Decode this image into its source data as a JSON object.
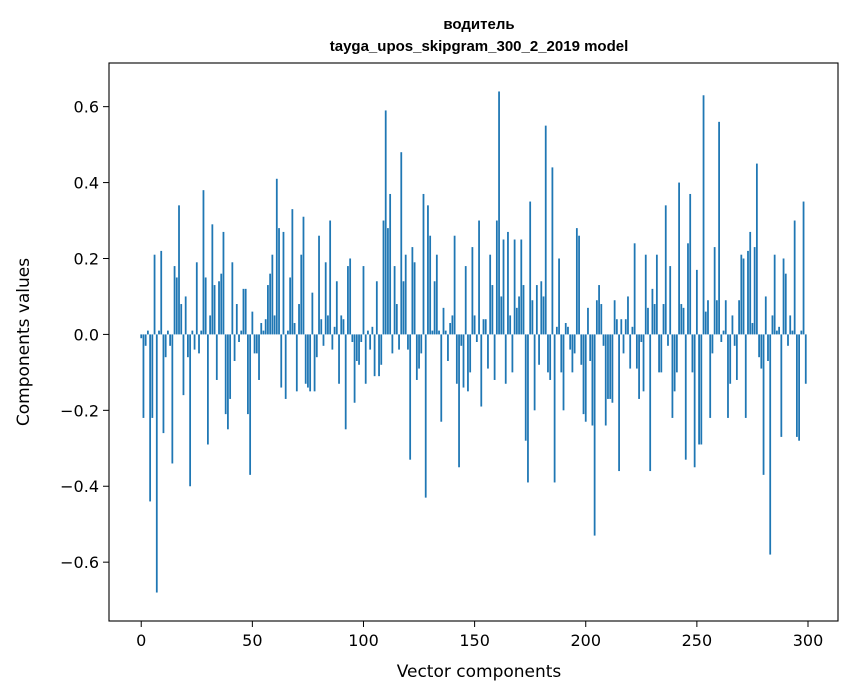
{
  "chart_data": {
    "type": "bar",
    "title": "водитель",
    "subtitle": "tayga_upos_skipgram_300_2_2019 model",
    "xlabel": "Vector components",
    "ylabel": "Components values",
    "xlim": [
      -14.5,
      313.5
    ],
    "ylim": [
      -0.755,
      0.715
    ],
    "xticks": [
      0,
      50,
      100,
      150,
      200,
      250,
      300
    ],
    "xtick_labels": [
      "0",
      "50",
      "100",
      "150",
      "200",
      "250",
      "300"
    ],
    "yticks": [
      -0.6,
      -0.4,
      -0.2,
      0.0,
      0.2,
      0.4,
      0.6
    ],
    "ytick_labels": [
      "−0.6",
      "−0.4",
      "−0.2",
      "0.0",
      "0.2",
      "0.4",
      "0.6"
    ],
    "color": "#1f77b4",
    "x": [
      0,
      1,
      2,
      3,
      4,
      5,
      6,
      7,
      8,
      9,
      10,
      11,
      12,
      13,
      14,
      15,
      16,
      17,
      18,
      19,
      20,
      21,
      22,
      23,
      24,
      25,
      26,
      27,
      28,
      29,
      30,
      31,
      32,
      33,
      34,
      35,
      36,
      37,
      38,
      39,
      40,
      41,
      42,
      43,
      44,
      45,
      46,
      47,
      48,
      49,
      50,
      51,
      52,
      53,
      54,
      55,
      56,
      57,
      58,
      59,
      60,
      61,
      62,
      63,
      64,
      65,
      66,
      67,
      68,
      69,
      70,
      71,
      72,
      73,
      74,
      75,
      76,
      77,
      78,
      79,
      80,
      81,
      82,
      83,
      84,
      85,
      86,
      87,
      88,
      89,
      90,
      91,
      92,
      93,
      94,
      95,
      96,
      97,
      98,
      99,
      100,
      101,
      102,
      103,
      104,
      105,
      106,
      107,
      108,
      109,
      110,
      111,
      112,
      113,
      114,
      115,
      116,
      117,
      118,
      119,
      120,
      121,
      122,
      123,
      124,
      125,
      126,
      127,
      128,
      129,
      130,
      131,
      132,
      133,
      134,
      135,
      136,
      137,
      138,
      139,
      140,
      141,
      142,
      143,
      144,
      145,
      146,
      147,
      148,
      149,
      150,
      151,
      152,
      153,
      154,
      155,
      156,
      157,
      158,
      159,
      160,
      161,
      162,
      163,
      164,
      165,
      166,
      167,
      168,
      169,
      170,
      171,
      172,
      173,
      174,
      175,
      176,
      177,
      178,
      179,
      180,
      181,
      182,
      183,
      184,
      185,
      186,
      187,
      188,
      189,
      190,
      191,
      192,
      193,
      194,
      195,
      196,
      197,
      198,
      199,
      200,
      201,
      202,
      203,
      204,
      205,
      206,
      207,
      208,
      209,
      210,
      211,
      212,
      213,
      214,
      215,
      216,
      217,
      218,
      219,
      220,
      221,
      222,
      223,
      224,
      225,
      226,
      227,
      228,
      229,
      230,
      231,
      232,
      233,
      234,
      235,
      236,
      237,
      238,
      239,
      240,
      241,
      242,
      243,
      244,
      245,
      246,
      247,
      248,
      249,
      250,
      251,
      252,
      253,
      254,
      255,
      256,
      257,
      258,
      259,
      260,
      261,
      262,
      263,
      264,
      265,
      266,
      267,
      268,
      269,
      270,
      271,
      272,
      273,
      274,
      275,
      276,
      277,
      278,
      279,
      280,
      281,
      282,
      283,
      284,
      285,
      286,
      287,
      288,
      289,
      290,
      291,
      292,
      293,
      294,
      295,
      296,
      297,
      298,
      299
    ],
    "values": [
      -0.01,
      -0.22,
      -0.03,
      0.01,
      -0.44,
      -0.22,
      0.21,
      -0.68,
      0.01,
      0.22,
      -0.26,
      -0.06,
      0.01,
      -0.03,
      -0.34,
      0.18,
      0.15,
      0.34,
      0.08,
      -0.16,
      0.1,
      -0.06,
      -0.4,
      0.01,
      -0.04,
      0.19,
      -0.05,
      0.01,
      0.38,
      0.15,
      -0.29,
      0.05,
      0.29,
      0.13,
      -0.12,
      0.14,
      0.16,
      0.27,
      -0.21,
      -0.25,
      -0.17,
      0.19,
      -0.07,
      0.08,
      -0.02,
      0.01,
      0.12,
      0.12,
      -0.21,
      -0.37,
      0.06,
      -0.05,
      -0.05,
      -0.12,
      0.03,
      0.01,
      0.04,
      0.13,
      0.16,
      0.21,
      0.05,
      0.41,
      0.28,
      -0.14,
      0.27,
      -0.17,
      0.01,
      0.15,
      0.33,
      0.03,
      -0.15,
      0.08,
      0.21,
      0.31,
      -0.13,
      -0.14,
      -0.15,
      0.11,
      -0.15,
      -0.06,
      0.26,
      0.04,
      -0.03,
      0.19,
      0.05,
      0.3,
      -0.04,
      0.02,
      0.14,
      -0.13,
      0.05,
      0.04,
      -0.25,
      0.18,
      0.2,
      -0.02,
      -0.18,
      -0.07,
      -0.08,
      -0.02,
      0.18,
      -0.13,
      0.01,
      -0.04,
      0.02,
      -0.11,
      0.14,
      -0.11,
      -0.08,
      0.3,
      0.59,
      0.28,
      0.37,
      -0.05,
      0.18,
      0.08,
      -0.04,
      0.48,
      0.14,
      0.21,
      -0.04,
      -0.33,
      0.23,
      0.19,
      -0.12,
      -0.09,
      -0.05,
      0.37,
      -0.43,
      0.34,
      0.26,
      0.01,
      0.14,
      0.21,
      0.01,
      -0.23,
      0.07,
      0.01,
      -0.07,
      0.03,
      0.05,
      0.26,
      -0.13,
      -0.35,
      -0.03,
      -0.14,
      0.18,
      -0.15,
      -0.1,
      0.23,
      0.05,
      -0.02,
      0.3,
      -0.19,
      0.04,
      0.04,
      -0.09,
      0.21,
      0.13,
      -0.12,
      0.3,
      0.64,
      0.1,
      0.25,
      -0.13,
      0.27,
      0.05,
      -0.1,
      0.25,
      0.07,
      0.1,
      0.25,
      0.13,
      -0.28,
      -0.39,
      0.35,
      0.09,
      -0.2,
      0.13,
      -0.08,
      0.14,
      0.1,
      0.55,
      -0.1,
      -0.12,
      0.44,
      -0.39,
      0.02,
      0.2,
      -0.1,
      -0.2,
      0.03,
      0.02,
      -0.04,
      -0.1,
      -0.05,
      0.28,
      0.26,
      -0.08,
      -0.21,
      -0.23,
      0.07,
      -0.07,
      -0.24,
      -0.53,
      0.09,
      0.13,
      0.08,
      -0.03,
      -0.24,
      -0.17,
      -0.17,
      -0.18,
      0.09,
      0.04,
      -0.36,
      0.04,
      -0.05,
      0.04,
      0.1,
      -0.09,
      0.02,
      0.24,
      -0.09,
      -0.17,
      -0.02,
      -0.15,
      0.21,
      0.07,
      -0.36,
      0.12,
      0.08,
      0.21,
      -0.1,
      -0.1,
      0.08,
      0.34,
      -0.03,
      0.18,
      -0.22,
      -0.15,
      -0.1,
      0.4,
      0.08,
      0.07,
      -0.33,
      0.24,
      0.37,
      -0.1,
      -0.35,
      0.17,
      -0.29,
      -0.29,
      0.63,
      0.06,
      0.09,
      -0.22,
      -0.05,
      0.23,
      0.09,
      0.56,
      -0.02,
      0.01,
      0.09,
      -0.22,
      -0.13,
      0.05,
      -0.03,
      -0.12,
      0.09,
      0.21,
      0.2,
      -0.22,
      0.22,
      0.27,
      0.03,
      0.23,
      0.45,
      -0.06,
      -0.09,
      -0.37,
      0.1,
      -0.07,
      -0.58,
      0.05,
      0.21,
      0.01,
      0.02,
      -0.27,
      0.2,
      0.16,
      -0.03,
      0.05,
      0.01,
      0.3,
      -0.27,
      -0.28,
      0.01,
      0.35,
      -0.13
    ]
  }
}
